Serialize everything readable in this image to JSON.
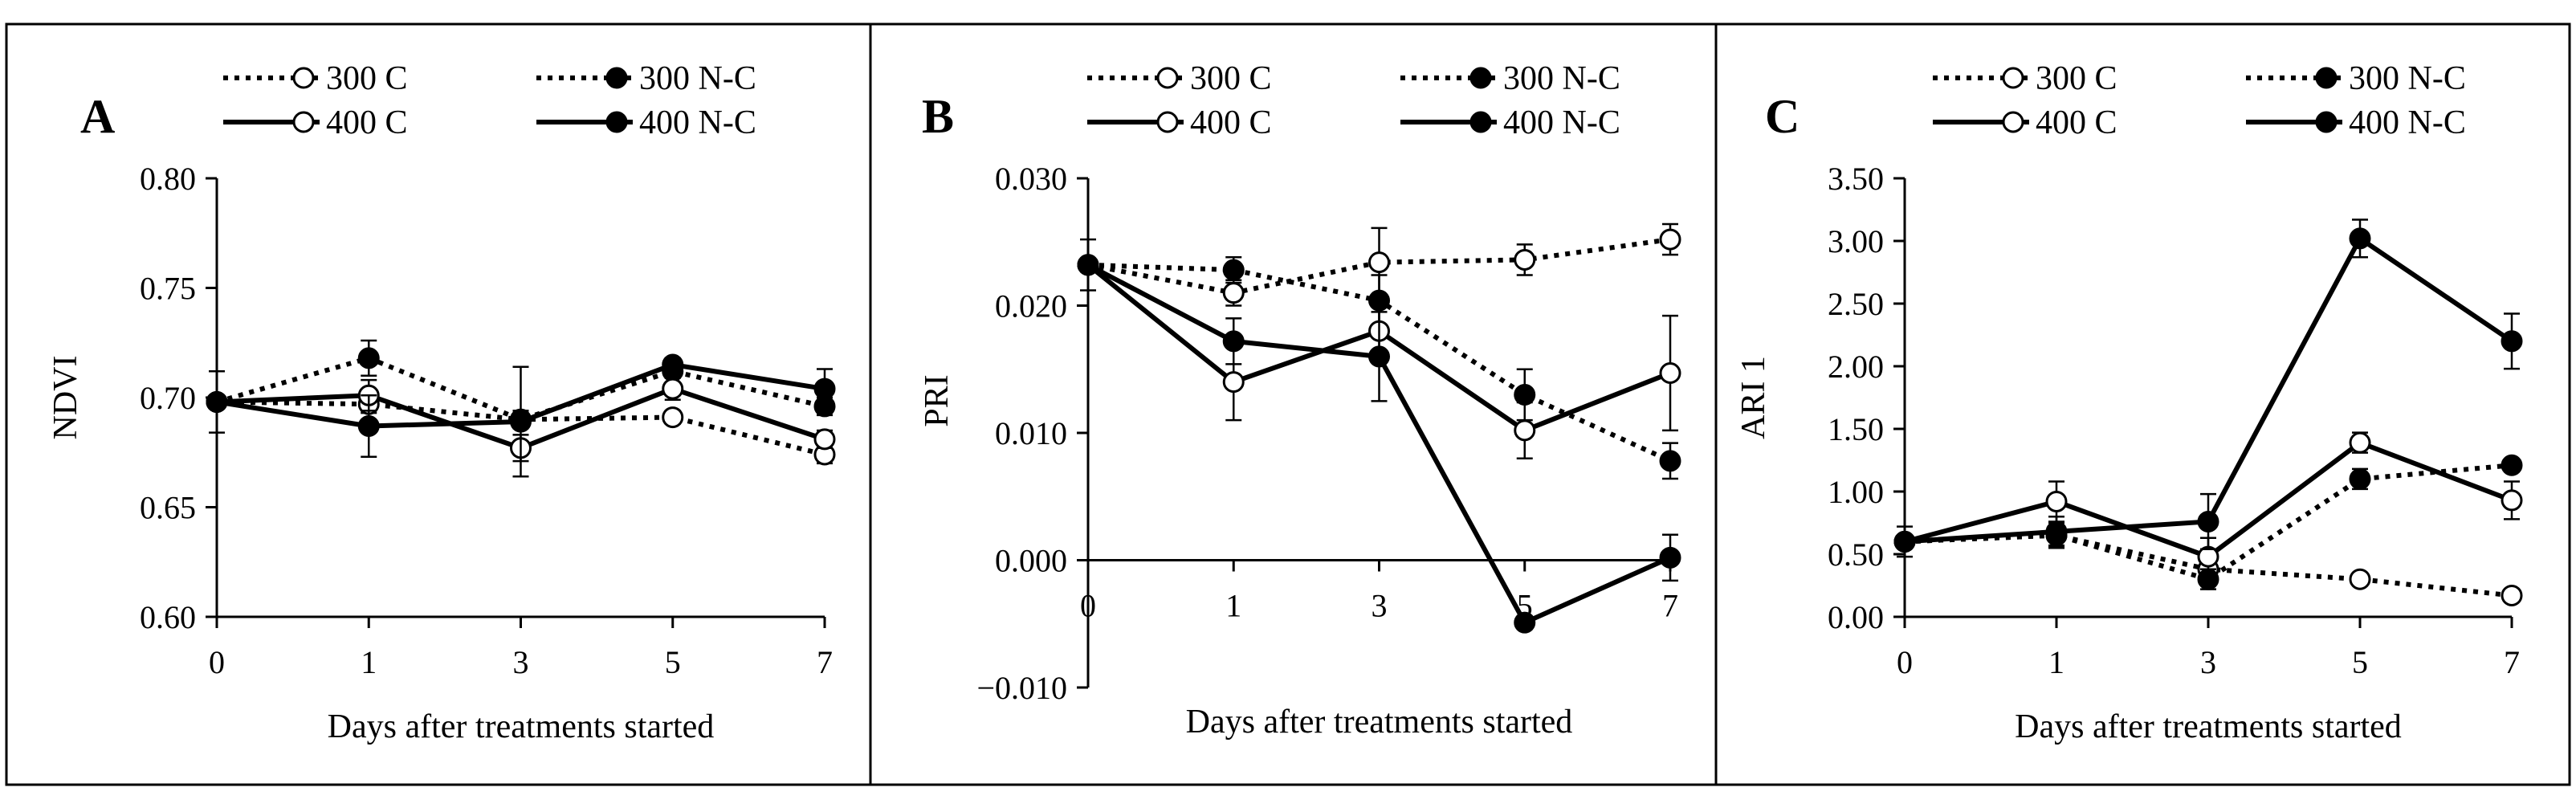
{
  "legend": {
    "entries": [
      {
        "label": "300 C",
        "dash": "dotted",
        "marker": "open"
      },
      {
        "label": "300 N-C",
        "dash": "dotted",
        "marker": "filled"
      },
      {
        "label": "400 C",
        "dash": "solid",
        "marker": "open"
      },
      {
        "label": "400 N-C",
        "dash": "solid",
        "marker": "filled"
      }
    ]
  },
  "colors": {
    "line": "#000000",
    "open_fill": "#ffffff",
    "filled_fill": "#000000",
    "background": "#ffffff"
  },
  "chart_data": [
    {
      "panel": "A",
      "type": "line",
      "ylabel": "NDVI",
      "xlabel": "Days after treatments started",
      "x": [
        0,
        1,
        3,
        5,
        7
      ],
      "x_tick_labels": [
        "0",
        "1",
        "3",
        "5",
        "7"
      ],
      "x_axis": "categorical",
      "ylim": [
        0.6,
        0.8
      ],
      "y_ticks": [
        0.6,
        0.65,
        0.7,
        0.75,
        0.8
      ],
      "y_tick_labels": [
        "0.60",
        "0.65",
        "0.70",
        "0.75",
        "0.80"
      ],
      "x_axis_at": 0.6,
      "series": [
        {
          "name": "300 C",
          "values": [
            0.698,
            0.697,
            0.69,
            0.691,
            0.674
          ],
          "errors": [
            0,
            0.004,
            0.003,
            0.003,
            0.004
          ]
        },
        {
          "name": "300 N-C",
          "values": [
            0.698,
            0.718,
            0.69,
            0.712,
            0.696
          ],
          "errors": [
            0,
            0.008,
            0.004,
            0.003,
            0.004
          ]
        },
        {
          "name": "400 C",
          "values": [
            0.698,
            0.701,
            0.677,
            0.704,
            0.681
          ],
          "errors": [
            0,
            0.007,
            0.006,
            0.005,
            0.004
          ]
        },
        {
          "name": "400 N-C",
          "values": [
            0.698,
            0.687,
            0.689,
            0.715,
            0.704
          ],
          "errors": [
            0.014,
            0.014,
            0.025,
            0.003,
            0.009
          ]
        }
      ]
    },
    {
      "panel": "B",
      "type": "line",
      "ylabel": "PRI",
      "xlabel": "Days after treatments started",
      "x": [
        0,
        1,
        3,
        5,
        7
      ],
      "x_tick_labels": [
        "0",
        "1",
        "3",
        "5",
        "7"
      ],
      "x_axis": "categorical",
      "ylim": [
        -0.01,
        0.03
      ],
      "y_ticks": [
        -0.01,
        0.0,
        0.01,
        0.02,
        0.03
      ],
      "y_tick_labels": [
        "-0.010",
        "0.000",
        "0.010",
        "0.020",
        "0.030"
      ],
      "x_axis_at": 0.0,
      "series": [
        {
          "name": "300 C",
          "values": [
            0.0232,
            0.021,
            0.0234,
            0.0236,
            0.0252
          ],
          "errors": [
            0,
            0.001,
            0.0027,
            0.0012,
            0.0012
          ]
        },
        {
          "name": "300 N-C",
          "values": [
            0.0232,
            0.0228,
            0.0204,
            0.013,
            0.0078
          ],
          "errors": [
            0,
            0.001,
            0.002,
            0.002,
            0.0014
          ]
        },
        {
          "name": "400 C",
          "values": [
            0.0232,
            0.014,
            0.018,
            0.0102,
            0.0147
          ],
          "errors": [
            0,
            0.003,
            0.0022,
            0.0022,
            0.0045
          ]
        },
        {
          "name": "400 N-C",
          "values": [
            0.0232,
            0.0172,
            0.016,
            -0.0049,
            0.0002
          ],
          "errors": [
            0.002,
            0.0018,
            0.0035,
            0.0005,
            0.0018
          ]
        }
      ]
    },
    {
      "panel": "C",
      "type": "line",
      "ylabel": "ARI 1",
      "xlabel": "Days after treatments started",
      "x": [
        0,
        1,
        3,
        5,
        7
      ],
      "x_tick_labels": [
        "0",
        "1",
        "3",
        "5",
        "7"
      ],
      "x_axis": "categorical",
      "ylim": [
        0.0,
        3.5
      ],
      "y_ticks": [
        0.0,
        0.5,
        1.0,
        1.5,
        2.0,
        2.5,
        3.0,
        3.5
      ],
      "y_tick_labels": [
        "0.00",
        "0.50",
        "1.00",
        "1.50",
        "2.00",
        "2.50",
        "3.00",
        "3.50"
      ],
      "x_axis_at": 0.0,
      "series": [
        {
          "name": "300 C",
          "values": [
            0.6,
            0.65,
            0.38,
            0.3,
            0.17
          ],
          "errors": [
            0,
            0.08,
            0.05,
            0.03,
            0.03
          ]
        },
        {
          "name": "300 N-C",
          "values": [
            0.6,
            0.65,
            0.3,
            1.1,
            1.21
          ],
          "errors": [
            0,
            0.1,
            0.08,
            0.08,
            0.05
          ]
        },
        {
          "name": "400 C",
          "values": [
            0.6,
            0.92,
            0.48,
            1.39,
            0.93
          ],
          "errors": [
            0,
            0.16,
            0.15,
            0.08,
            0.15
          ]
        },
        {
          "name": "400 N-C",
          "values": [
            0.6,
            0.68,
            0.76,
            3.02,
            2.2
          ],
          "errors": [
            0.12,
            0.12,
            0.22,
            0.15,
            0.22
          ]
        }
      ]
    }
  ]
}
